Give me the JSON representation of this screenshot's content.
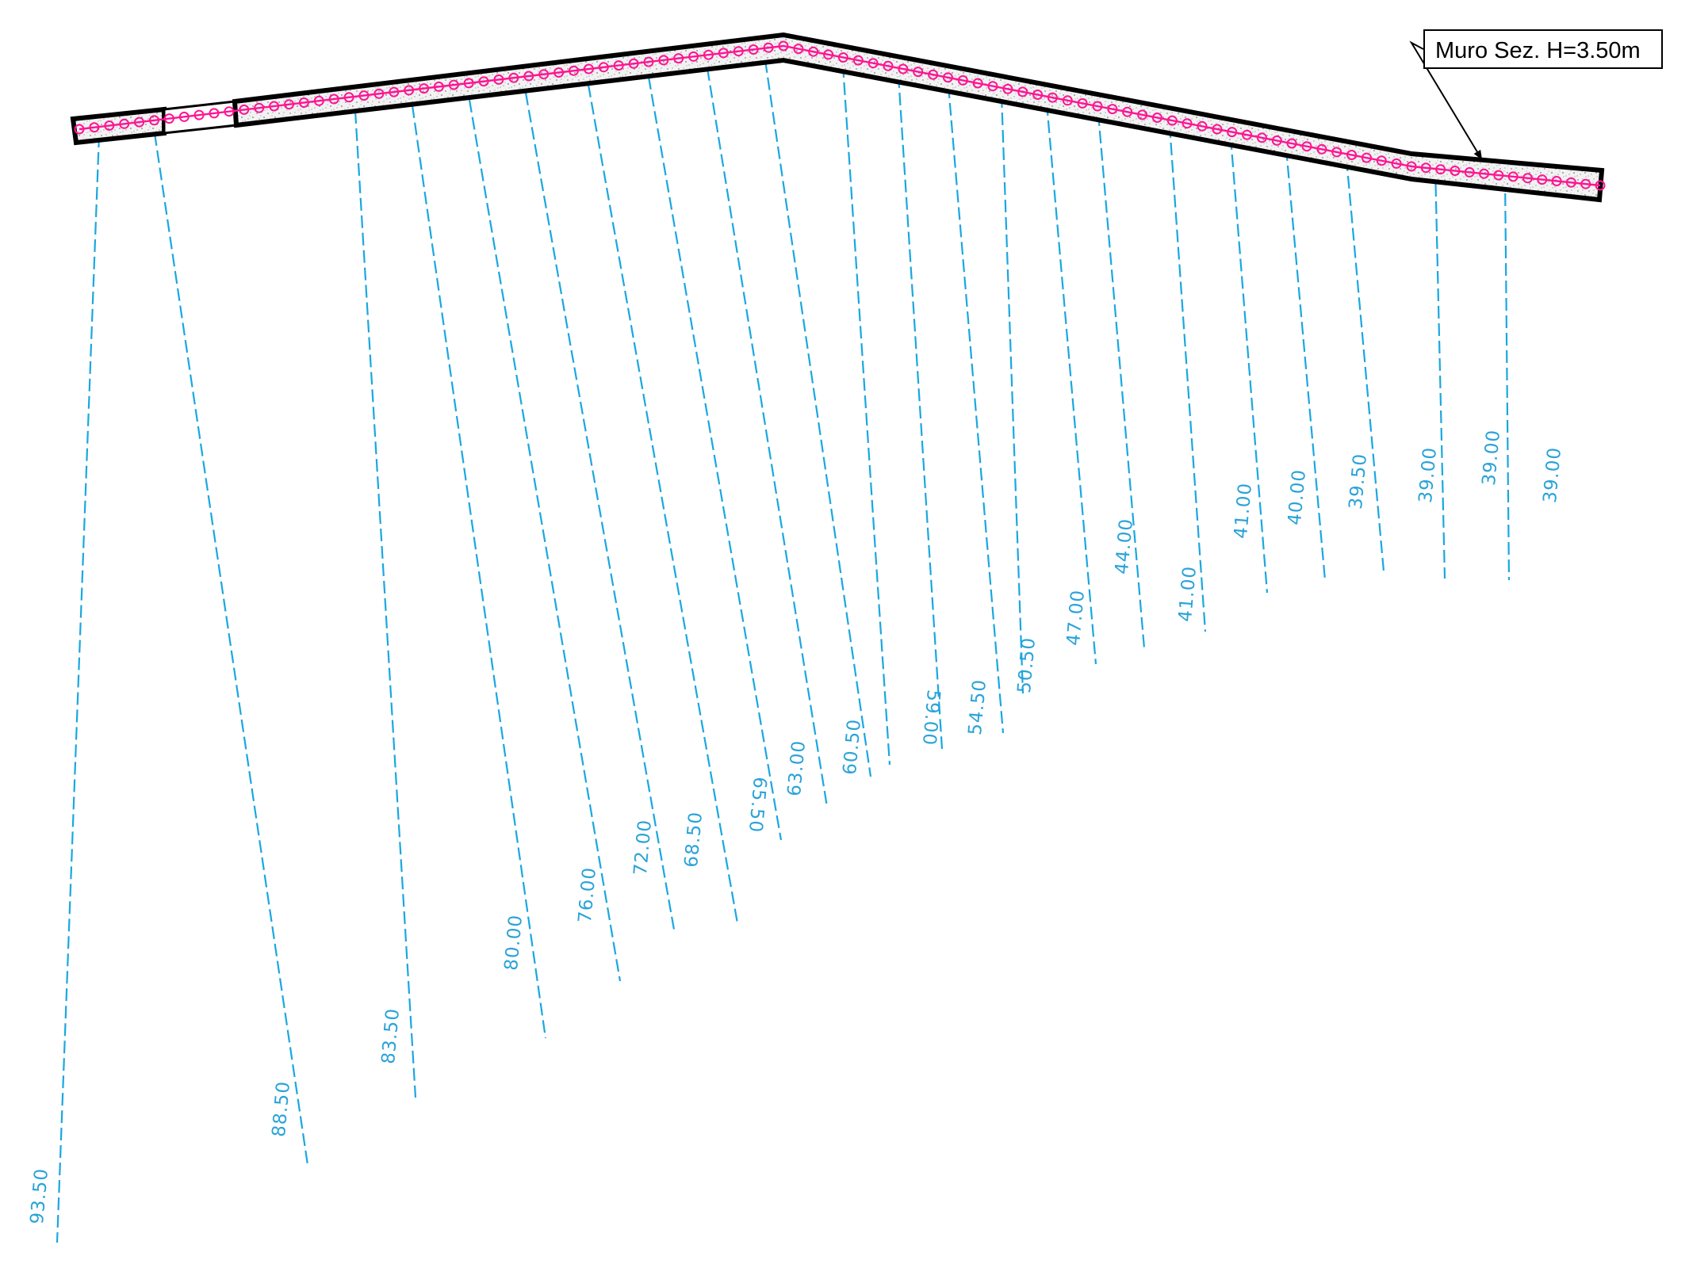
{
  "wall": {
    "label": "Muro Sez. H=3.50m"
  },
  "anchors": [
    {
      "label": "93.50"
    },
    {
      "label": "88.50"
    },
    {
      "label": "83.50"
    },
    {
      "label": "80.00"
    },
    {
      "label": "76.00"
    },
    {
      "label": "72.00"
    },
    {
      "label": "68.50"
    },
    {
      "label": "65.50"
    },
    {
      "label": "63.00"
    },
    {
      "label": "60.50"
    },
    {
      "label": "59.00"
    },
    {
      "label": "54.50"
    },
    {
      "label": "50.50"
    },
    {
      "label": "47.00"
    },
    {
      "label": "44.00"
    },
    {
      "label": "41.00"
    },
    {
      "label": "41.00"
    },
    {
      "label": "40.00"
    },
    {
      "label": "39.50"
    },
    {
      "label": "39.00"
    },
    {
      "label": "39.00"
    },
    {
      "label": "39.00"
    }
  ],
  "colors": {
    "anchor": "#1aa7e0",
    "bolt": "#ff1493",
    "wall_outline": "#000000"
  }
}
